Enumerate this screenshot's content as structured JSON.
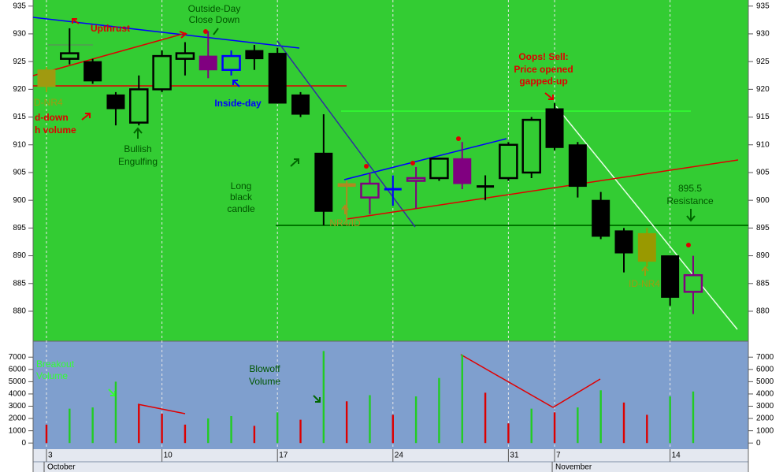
{
  "chart_data": [
    {
      "type": "candlestick",
      "categories": [
        "3",
        null,
        null,
        null,
        null,
        "10",
        null,
        null,
        null,
        null,
        "17",
        null,
        null,
        null,
        null,
        "24",
        null,
        null,
        null,
        null,
        "31",
        null,
        "7",
        null,
        null,
        null,
        null,
        "14",
        null
      ],
      "open": [
        923.5,
        925.5,
        925,
        919,
        914,
        920,
        925.5,
        926,
        923.5,
        927,
        926.5,
        919,
        908.5,
        903,
        900.5,
        902,
        903.5,
        904,
        907.5,
        902.5,
        904,
        905,
        916.5,
        910,
        900,
        894.5,
        894,
        890,
        883.5
      ],
      "high": [
        924,
        931,
        925.5,
        919.5,
        922.5,
        927,
        928.5,
        930.5,
        927,
        928,
        927.5,
        919.5,
        915.5,
        903.5,
        905,
        904.5,
        906,
        907.5,
        910.5,
        904.5,
        910.5,
        915,
        917.5,
        910.5,
        901.5,
        895,
        895,
        890,
        890
      ],
      "low": [
        919.5,
        924.5,
        921,
        913.5,
        913.5,
        919.5,
        922.5,
        922,
        922.5,
        923.5,
        917.5,
        915,
        895.5,
        896.5,
        897.5,
        899,
        898.5,
        903.5,
        902,
        900,
        903.5,
        904,
        909,
        900.5,
        893,
        887,
        888,
        881,
        879.5
      ],
      "close": [
        920.5,
        926.5,
        921.5,
        916.5,
        920,
        926,
        926.5,
        923.5,
        926,
        925.5,
        917.5,
        915.5,
        898,
        902.5,
        903,
        902,
        904,
        907.5,
        903,
        902.5,
        910,
        914.5,
        909.5,
        902.5,
        893.5,
        890.5,
        889,
        882.5,
        886.5
      ],
      "colors": [
        "#a09a10",
        "#000000",
        "#000000",
        "#000000",
        "#000000",
        "#000000",
        "#000000",
        "#800080",
        "#0000ff",
        "#000000",
        "#000000",
        "#000000",
        "#000000",
        "#b08a20",
        "#800080",
        "#0000ff",
        "#800080",
        "#000000",
        "#800080",
        "#000000",
        "#000000",
        "#000000",
        "#000000",
        "#000000",
        "#000000",
        "#000000",
        "#999900",
        "#000000",
        "#800080"
      ],
      "ylim": [
        874.6,
        936.1
      ],
      "yticks": [
        880,
        885,
        890,
        895,
        900,
        905,
        910,
        915,
        920,
        925,
        930,
        935
      ],
      "months": [
        "October",
        "November"
      ],
      "annotations": [
        "Upthrust",
        "Outside-Day",
        "Close Down",
        "Inside-day",
        "D-NR4",
        "d-down",
        "h volume",
        "Bullish",
        "Engulfing",
        "Long",
        "black",
        "candle",
        "Oops! Sell:",
        "Price opened",
        "gapped-up",
        "895.5",
        "Resistance",
        "ID-NR4",
        "NR4/ID"
      ]
    },
    {
      "type": "bar",
      "values": [
        1500,
        2800,
        2900,
        5000,
        3100,
        2400,
        1500,
        2000,
        2200,
        1400,
        2500,
        1900,
        7500,
        3400,
        3900,
        2300,
        3800,
        5300,
        7200,
        4100,
        1600,
        2800,
        2500,
        2900,
        4300,
        3300,
        2300,
        3800,
        4200
      ],
      "colors": [
        "#dd0000",
        "#22cc22",
        "#22cc22",
        "#22cc22",
        "#dd0000",
        "#dd0000",
        "#dd0000",
        "#22cc22",
        "#22cc22",
        "#dd0000",
        "#22cc22",
        "#dd0000",
        "#22cc22",
        "#dd0000",
        "#22cc22",
        "#dd0000",
        "#22cc22",
        "#22cc22",
        "#22cc22",
        "#dd0000",
        "#dd0000",
        "#22cc22",
        "#dd0000",
        "#22cc22",
        "#22cc22",
        "#dd0000",
        "#dd0000",
        "#22cc22",
        "#22cc22"
      ],
      "ylim": [
        -500,
        8300
      ],
      "yticks": [
        0,
        1000,
        2000,
        3000,
        4000,
        5000,
        6000,
        7000
      ],
      "annotations": [
        "Breakout",
        "Volume",
        "Blowoff",
        "Volume"
      ]
    }
  ]
}
